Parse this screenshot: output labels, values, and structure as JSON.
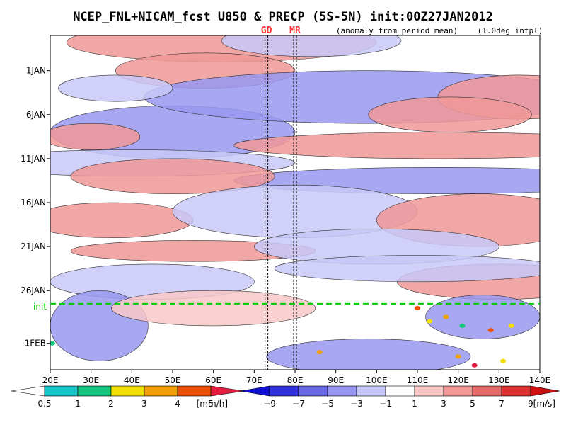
{
  "title": "NCEP_FNL+NICAM_fcst U850 & PRECP (5S-5N) init:00Z27JAN2012",
  "subtitle_left": "(anomaly from period mean)",
  "subtitle_right": "(1.0deg intpl)",
  "chart_data": {
    "type": "heatmap",
    "x_ticks": [
      "20E",
      "30E",
      "40E",
      "50E",
      "60E",
      "70E",
      "80E",
      "90E",
      "100E",
      "110E",
      "120E",
      "130E",
      "140E"
    ],
    "x_values": [
      20,
      30,
      40,
      50,
      60,
      70,
      80,
      90,
      100,
      110,
      120,
      130,
      140
    ],
    "xlim": [
      20,
      140
    ],
    "y_ticks": [
      "1JAN",
      "6JAN",
      "11JAN",
      "16JAN",
      "21JAN",
      "26JAN",
      "1FEB"
    ],
    "y_values": [
      6,
      11,
      16,
      21,
      26,
      31,
      37
    ],
    "ylim": [
      2,
      40
    ],
    "init_label": "init",
    "init_value": 32.5,
    "init_color": "#00cc00",
    "markers": [
      {
        "label": "GD",
        "lon": 73,
        "color": "#ff3333"
      },
      {
        "label": "MR",
        "lon": 80,
        "color": "#ff3333"
      }
    ],
    "precip_legend": {
      "labels": [
        "0.5",
        "1",
        "2",
        "3",
        "4",
        "5"
      ],
      "unit": "[mm/h]",
      "colors": [
        "#ffffff",
        "#10c8c8",
        "#10c880",
        "#f0e000",
        "#f0a000",
        "#f05000",
        "#e02040"
      ]
    },
    "u850_legend": {
      "labels": [
        "−9",
        "−7",
        "−5",
        "−3",
        "−1",
        "1",
        "3",
        "5",
        "7",
        "9"
      ],
      "unit": "[m/s]",
      "colors": [
        "#1010d0",
        "#3030e0",
        "#6868e8",
        "#9898f0",
        "#c8c8f8",
        "#ffffff",
        "#f8c8c8",
        "#f09898",
        "#e86868",
        "#e03030",
        "#d01010"
      ]
    }
  }
}
